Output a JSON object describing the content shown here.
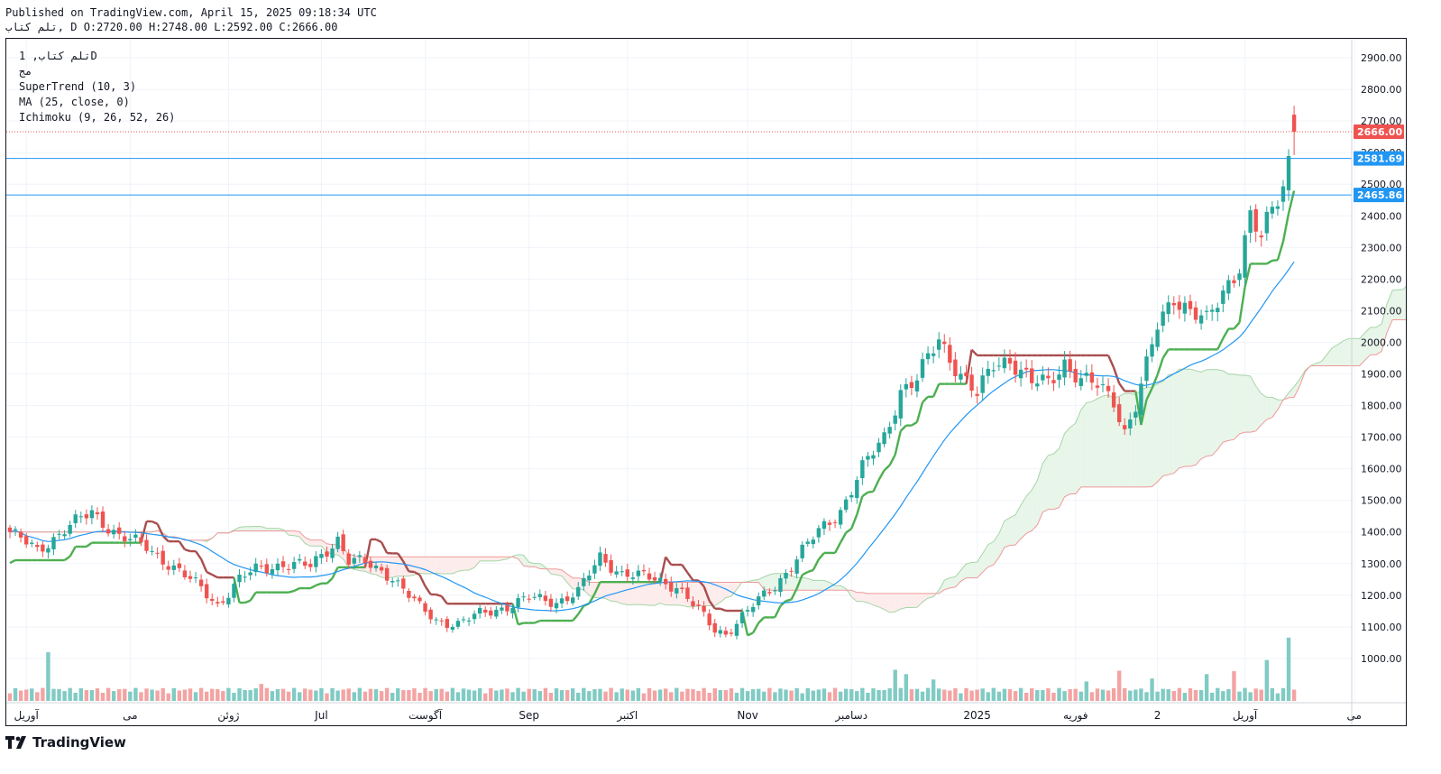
{
  "header": {
    "published": "Published on TradingView.com, April 15, 2025 09:18:34 UTC",
    "ohlc": "تلم کتاب, D O:2720.00 H:2748.00 L:2592.00 C:2666.00"
  },
  "legend": {
    "symbol": "تلم کتاب, 1D",
    "note": "مج",
    "supertrend": "SuperTrend (10, 3)",
    "ma": "MA (25, close, 0)",
    "ichimoku": "Ichimoku (9, 26, 52, 26)"
  },
  "brand": {
    "name": "TradingView",
    "icon": "tradingview-logo-icon"
  },
  "colors": {
    "up": "#26a69a",
    "down": "#ef5350",
    "supertrend_up": "#4caf50",
    "supertrend_down": "#a94d4d",
    "ma": "#2196f3",
    "cloud_up": "#e8f5e9",
    "cloud_down": "#fdecec",
    "line_blue": "#2196f3",
    "last_price": "#ef5350"
  },
  "chart_data": {
    "type": "candlestick",
    "timeframe": "1D",
    "y_range": [
      860,
      2960
    ],
    "y_ticks": [
      1000,
      1100,
      1200,
      1300,
      1400,
      1500,
      1600,
      1700,
      1800,
      1900,
      2000,
      2100,
      2200,
      2300,
      2400,
      2500,
      2600,
      2700,
      2800,
      2900
    ],
    "x_labels": [
      {
        "label": "آوریل",
        "bar": 3
      },
      {
        "label": "می",
        "bar": 22
      },
      {
        "label": "ژوئن",
        "bar": 40
      },
      {
        "label": "Jul",
        "bar": 57
      },
      {
        "label": "آگوست",
        "bar": 76
      },
      {
        "label": "Sep",
        "bar": 95
      },
      {
        "label": "اکتبر",
        "bar": 113
      },
      {
        "label": "Nov",
        "bar": 135
      },
      {
        "label": "دسامبر",
        "bar": 154
      },
      {
        "label": "2025",
        "bar": 177
      },
      {
        "label": "فوریه",
        "bar": 195
      },
      {
        "label": "2",
        "bar": 210
      },
      {
        "label": "آوریل",
        "bar": 226
      },
      {
        "label": "می",
        "bar": 246
      }
    ],
    "price_labels": [
      {
        "value": 2666.0,
        "label": "2666.00",
        "color": "#ef5350"
      },
      {
        "value": 2581.69,
        "label": "2581.69",
        "color": "#2196f3"
      },
      {
        "value": 2465.86,
        "label": "2465.86",
        "color": "#2196f3"
      }
    ],
    "horizontal_lines": [
      2581.69,
      2465.86
    ],
    "last_price": 2666.0,
    "anchors": [
      [
        0,
        1400
      ],
      [
        5,
        1340
      ],
      [
        10,
        1410
      ],
      [
        15,
        1460
      ],
      [
        20,
        1390
      ],
      [
        25,
        1350
      ],
      [
        30,
        1290
      ],
      [
        35,
        1220
      ],
      [
        38,
        1170
      ],
      [
        42,
        1250
      ],
      [
        45,
        1280
      ],
      [
        50,
        1300
      ],
      [
        55,
        1290
      ],
      [
        60,
        1380
      ],
      [
        62,
        1310
      ],
      [
        65,
        1300
      ],
      [
        70,
        1260
      ],
      [
        75,
        1160
      ],
      [
        78,
        1120
      ],
      [
        82,
        1110
      ],
      [
        86,
        1140
      ],
      [
        90,
        1160
      ],
      [
        95,
        1190
      ],
      [
        100,
        1180
      ],
      [
        104,
        1210
      ],
      [
        108,
        1320
      ],
      [
        112,
        1270
      ],
      [
        118,
        1250
      ],
      [
        122,
        1230
      ],
      [
        126,
        1150
      ],
      [
        129,
        1090
      ],
      [
        131,
        1080
      ],
      [
        135,
        1150
      ],
      [
        140,
        1230
      ],
      [
        145,
        1340
      ],
      [
        148,
        1400
      ],
      [
        152,
        1470
      ],
      [
        156,
        1600
      ],
      [
        160,
        1700
      ],
      [
        163,
        1850
      ],
      [
        166,
        1880
      ],
      [
        170,
        2010
      ],
      [
        174,
        1900
      ],
      [
        177,
        1830
      ],
      [
        180,
        1930
      ],
      [
        183,
        1950
      ],
      [
        187,
        1870
      ],
      [
        190,
        1870
      ],
      [
        193,
        1940
      ],
      [
        196,
        1880
      ],
      [
        199,
        1860
      ],
      [
        202,
        1820
      ],
      [
        204,
        1720
      ],
      [
        206,
        1800
      ],
      [
        208,
        1920
      ],
      [
        210,
        2050
      ],
      [
        213,
        2150
      ],
      [
        216,
        2100
      ],
      [
        219,
        2060
      ],
      [
        222,
        2160
      ],
      [
        225,
        2250
      ],
      [
        227,
        2400
      ],
      [
        229,
        2320
      ],
      [
        231,
        2420
      ],
      [
        233,
        2500
      ],
      [
        235,
        2666
      ]
    ],
    "volume_spikes": [
      {
        "bar": 7,
        "h": 1.0
      },
      {
        "bar": 46,
        "h": 0.35
      },
      {
        "bar": 162,
        "h": 0.64
      },
      {
        "bar": 164,
        "h": 0.55
      },
      {
        "bar": 169,
        "h": 0.44
      },
      {
        "bar": 197,
        "h": 0.4
      },
      {
        "bar": 203,
        "h": 0.62
      },
      {
        "bar": 209,
        "h": 0.46
      },
      {
        "bar": 219,
        "h": 0.55
      },
      {
        "bar": 224,
        "h": 0.61
      },
      {
        "bar": 230,
        "h": 0.84
      },
      {
        "bar": 234,
        "h": 1.3
      }
    ]
  }
}
